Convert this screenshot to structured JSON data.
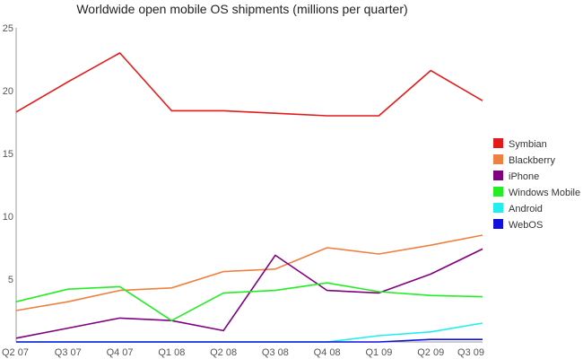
{
  "chart_data": {
    "type": "line",
    "title": "Worldwide open mobile OS shipments (millions per quarter)",
    "xlabel": "",
    "ylabel": "",
    "categories": [
      "Q2 07",
      "Q3 07",
      "Q4 07",
      "Q1 08",
      "Q2 08",
      "Q3 08",
      "Q4 08",
      "Q1 09",
      "Q2 09",
      "Q3 09"
    ],
    "ylim": [
      0,
      25
    ],
    "yticks": [
      "5",
      "10",
      "15",
      "20",
      "25"
    ],
    "grid": false,
    "legend_position": "right",
    "series": [
      {
        "name": "Symbian",
        "color": "#e41a1a",
        "values": [
          18.3,
          20.7,
          23.0,
          18.4,
          18.4,
          18.2,
          18.0,
          18.0,
          21.6,
          19.2
        ]
      },
      {
        "name": "Blackberry",
        "color": "#f08040",
        "values": [
          2.5,
          3.2,
          4.1,
          4.3,
          5.6,
          5.8,
          7.5,
          7.0,
          7.7,
          8.5
        ]
      },
      {
        "name": "iPhone",
        "color": "#800080",
        "values": [
          0.3,
          1.1,
          1.9,
          1.7,
          0.9,
          6.9,
          4.1,
          3.9,
          5.4,
          7.4
        ]
      },
      {
        "name": "Windows Mobile",
        "color": "#22ee22",
        "values": [
          3.2,
          4.2,
          4.4,
          1.7,
          3.9,
          4.1,
          4.7,
          4.0,
          3.7,
          3.6
        ]
      },
      {
        "name": "Android",
        "color": "#22eeee",
        "values": [
          0.0,
          0.0,
          0.0,
          0.0,
          0.0,
          0.0,
          0.0,
          0.5,
          0.8,
          1.5
        ]
      },
      {
        "name": "WebOS",
        "color": "#1111dd",
        "values": [
          0.0,
          0.0,
          0.0,
          0.0,
          0.0,
          0.0,
          0.0,
          0.0,
          0.2,
          0.2
        ]
      }
    ]
  }
}
